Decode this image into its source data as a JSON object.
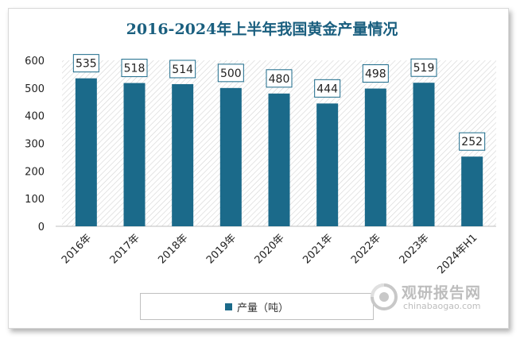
{
  "chart_data": {
    "type": "bar",
    "title": "2016-2024年上半年我国黄金产量情况",
    "categories": [
      "2016年",
      "2017年",
      "2018年",
      "2019年",
      "2020年",
      "2021年",
      "2022年",
      "2023年",
      "2024年H1"
    ],
    "series": [
      {
        "name": "产量（吨）",
        "values": [
          535,
          518,
          514,
          500,
          480,
          444,
          498,
          519,
          252
        ]
      }
    ],
    "data_labels": [
      "535",
      "518",
      "514",
      "500",
      "480",
      "444",
      "498",
      "519",
      "252"
    ],
    "ylim": [
      0,
      600
    ],
    "yticks": [
      "0",
      "100",
      "200",
      "300",
      "400",
      "500",
      "600"
    ],
    "xlabel": "",
    "ylabel": "",
    "legend_position": "bottom",
    "grid": false,
    "colors": {
      "bar": "#1b6a8a",
      "title": "#1a5f7f",
      "plot_pattern": "#d4d4d4"
    }
  },
  "watermark": {
    "cn": "观研报告网",
    "en": "chinabaogao.com"
  }
}
